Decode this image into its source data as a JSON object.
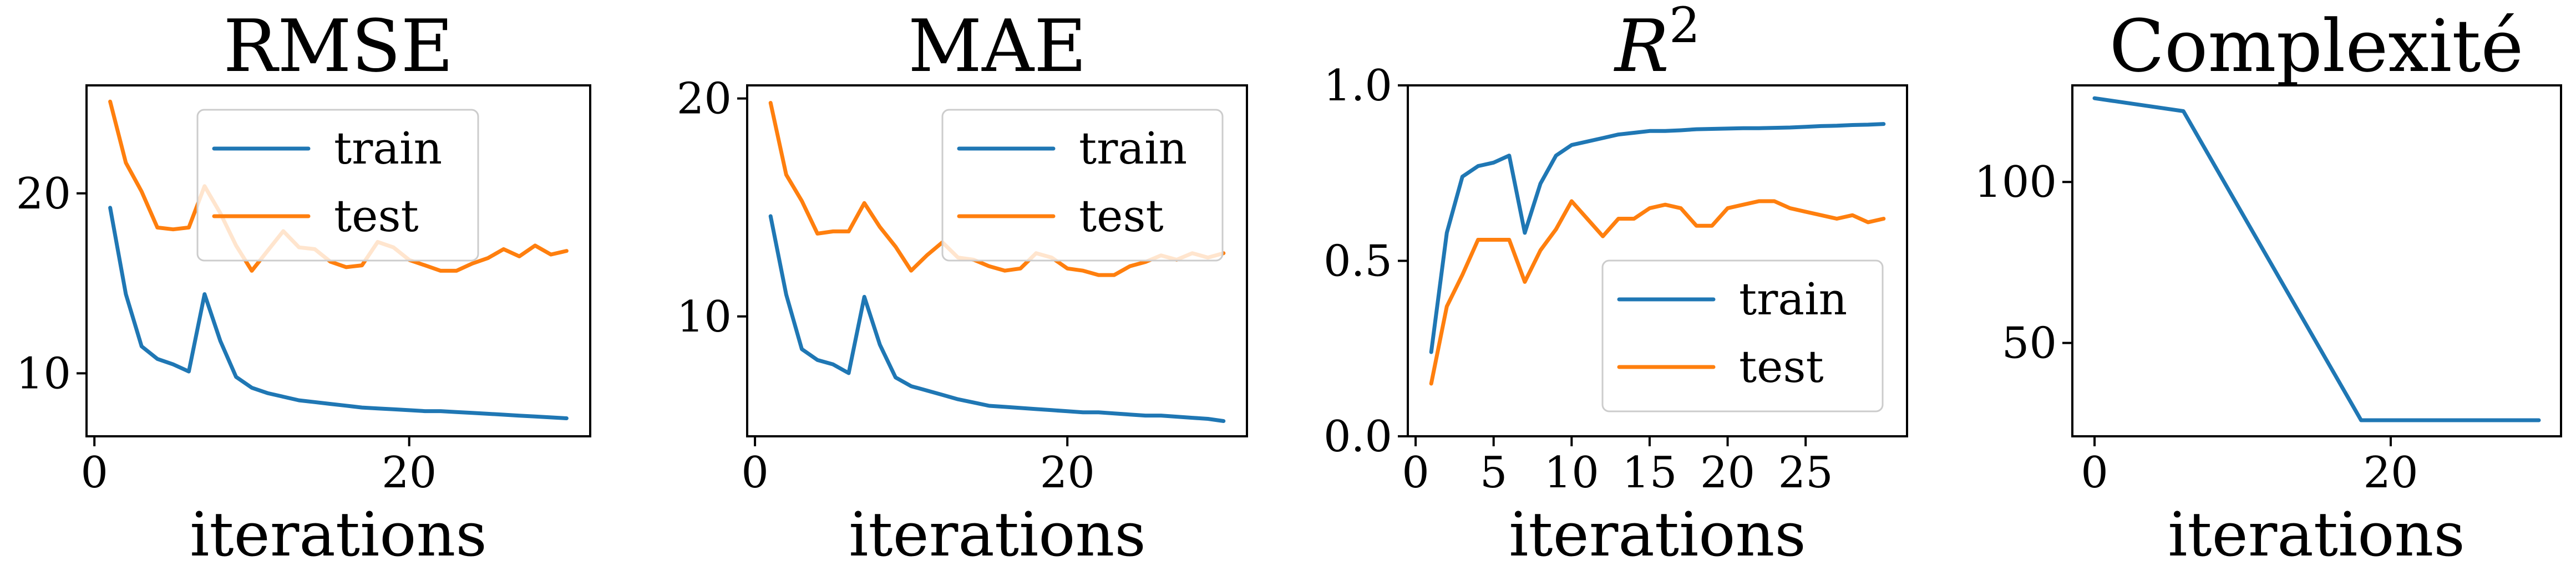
{
  "chart_data": [
    {
      "type": "line",
      "title": "RMSE",
      "xlabel": "iterations",
      "ylabel": "",
      "xlim": [
        -0.5,
        31.5
      ],
      "ylim": [
        6.5,
        26
      ],
      "xticks": [
        0,
        20
      ],
      "yticks": [
        10,
        20
      ],
      "legend": "top-right",
      "x": [
        1,
        2,
        3,
        4,
        5,
        6,
        7,
        8,
        9,
        10,
        11,
        12,
        13,
        14,
        15,
        16,
        17,
        18,
        19,
        20,
        21,
        22,
        23,
        24,
        25,
        26,
        27,
        28,
        29,
        30
      ],
      "series": [
        {
          "name": "train",
          "color": "#1f77b4",
          "values": [
            19.2,
            14.4,
            11.5,
            10.8,
            10.5,
            10.1,
            14.4,
            11.8,
            9.8,
            9.2,
            8.9,
            8.7,
            8.5,
            8.4,
            8.3,
            8.2,
            8.1,
            8.05,
            8.0,
            7.95,
            7.9,
            7.9,
            7.85,
            7.8,
            7.75,
            7.7,
            7.65,
            7.6,
            7.55,
            7.5
          ]
        },
        {
          "name": "test",
          "color": "#ff7f0e",
          "values": [
            25.1,
            21.7,
            20.1,
            18.1,
            18.0,
            18.1,
            20.4,
            18.9,
            17.1,
            15.7,
            16.8,
            17.9,
            17.0,
            16.9,
            16.2,
            15.9,
            16.0,
            17.3,
            17.0,
            16.3,
            16.0,
            15.7,
            15.7,
            16.1,
            16.4,
            16.9,
            16.5,
            17.1,
            16.6,
            16.8
          ]
        }
      ]
    },
    {
      "type": "line",
      "title": "MAE",
      "xlabel": "iterations",
      "ylabel": "",
      "xlim": [
        -0.5,
        31.5
      ],
      "ylim": [
        4.5,
        20.6
      ],
      "xticks": [
        0,
        20
      ],
      "yticks": [
        10,
        20
      ],
      "legend": "top-right",
      "x": [
        1,
        2,
        3,
        4,
        5,
        6,
        7,
        8,
        9,
        10,
        11,
        12,
        13,
        14,
        15,
        16,
        17,
        18,
        19,
        20,
        21,
        22,
        23,
        24,
        25,
        26,
        27,
        28,
        29,
        30
      ],
      "series": [
        {
          "name": "train",
          "color": "#1f77b4",
          "values": [
            14.6,
            11.0,
            8.5,
            8.0,
            7.8,
            7.4,
            10.9,
            8.7,
            7.2,
            6.8,
            6.6,
            6.4,
            6.2,
            6.05,
            5.9,
            5.85,
            5.8,
            5.75,
            5.7,
            5.65,
            5.6,
            5.6,
            5.55,
            5.5,
            5.45,
            5.45,
            5.4,
            5.35,
            5.3,
            5.2
          ]
        },
        {
          "name": "test",
          "color": "#ff7f0e",
          "values": [
            19.8,
            16.5,
            15.3,
            13.8,
            13.9,
            13.9,
            15.2,
            14.1,
            13.2,
            12.1,
            12.8,
            13.4,
            12.7,
            12.6,
            12.3,
            12.1,
            12.2,
            12.9,
            12.7,
            12.2,
            12.1,
            11.9,
            11.9,
            12.3,
            12.5,
            12.8,
            12.6,
            12.9,
            12.7,
            12.9
          ]
        }
      ]
    },
    {
      "type": "line",
      "title": "R",
      "title_superscript": "2",
      "xlabel": "iterations",
      "ylabel": "",
      "xlim": [
        -0.5,
        31.5
      ],
      "ylim": [
        0.0,
        1.0
      ],
      "xticks": [
        0,
        5,
        10,
        15,
        20,
        25
      ],
      "yticks": [
        0.0,
        0.5,
        1.0
      ],
      "legend": "lower-right",
      "x": [
        1,
        2,
        3,
        4,
        5,
        6,
        7,
        8,
        9,
        10,
        11,
        12,
        13,
        14,
        15,
        16,
        17,
        18,
        19,
        20,
        21,
        22,
        23,
        24,
        25,
        26,
        27,
        28,
        29,
        30
      ],
      "series": [
        {
          "name": "train",
          "color": "#1f77b4",
          "values": [
            0.24,
            0.58,
            0.74,
            0.77,
            0.78,
            0.8,
            0.58,
            0.72,
            0.8,
            0.83,
            0.84,
            0.85,
            0.86,
            0.865,
            0.87,
            0.87,
            0.872,
            0.875,
            0.876,
            0.877,
            0.878,
            0.878,
            0.879,
            0.88,
            0.882,
            0.884,
            0.885,
            0.887,
            0.888,
            0.89
          ]
        },
        {
          "name": "test",
          "color": "#ff7f0e",
          "values": [
            0.15,
            0.37,
            0.46,
            0.56,
            0.56,
            0.56,
            0.44,
            0.53,
            0.59,
            0.67,
            0.62,
            0.57,
            0.62,
            0.62,
            0.65,
            0.66,
            0.65,
            0.6,
            0.6,
            0.65,
            0.66,
            0.67,
            0.67,
            0.65,
            0.64,
            0.63,
            0.62,
            0.63,
            0.61,
            0.62
          ]
        }
      ]
    },
    {
      "type": "line",
      "title": "Complexité",
      "xlabel": "iterations",
      "ylabel": "",
      "xlim": [
        -1.5,
        31.5
      ],
      "ylim": [
        21,
        130
      ],
      "xticks": [
        0,
        20
      ],
      "yticks": [
        50,
        100
      ],
      "legend": "none",
      "x": [
        0,
        6,
        18,
        30
      ],
      "series": [
        {
          "name": "",
          "color": "#1f77b4",
          "values": [
            126,
            122,
            26,
            26
          ]
        }
      ]
    }
  ]
}
